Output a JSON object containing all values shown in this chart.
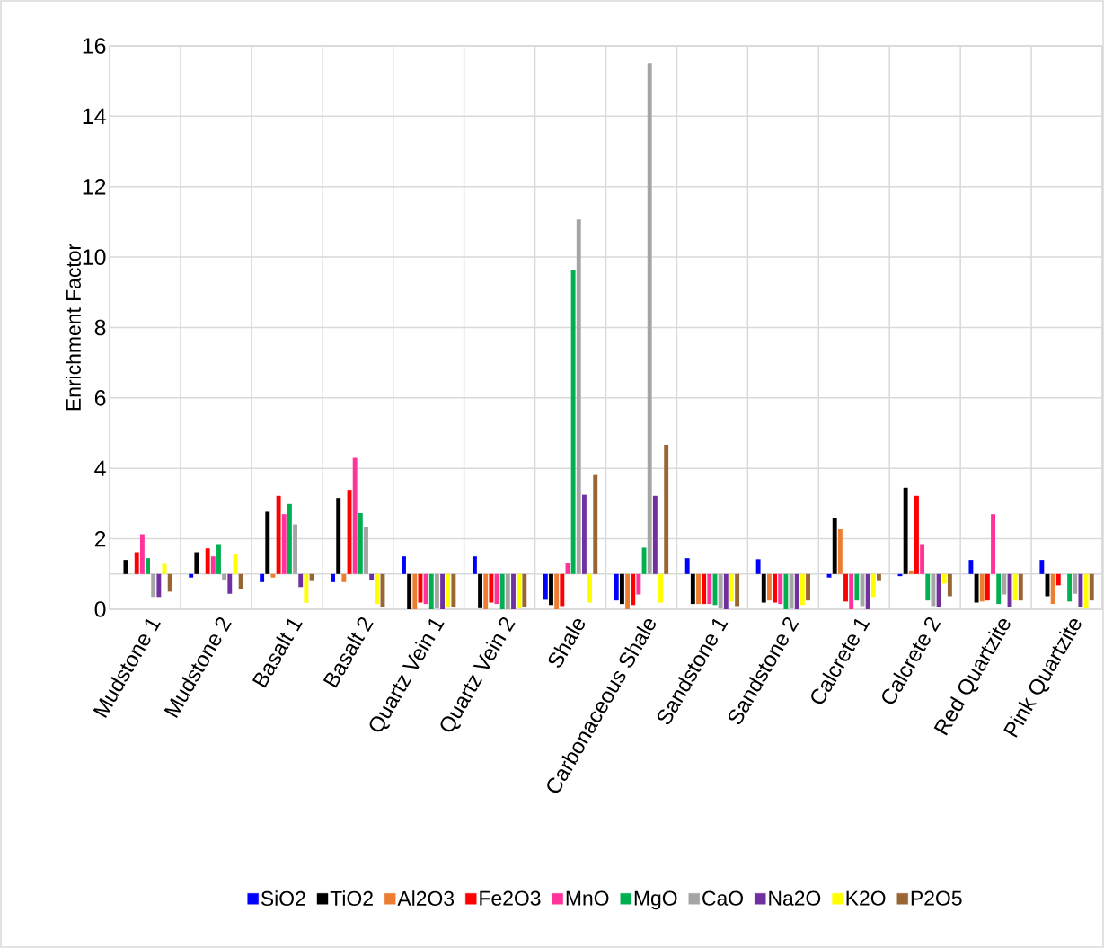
{
  "chart_data": {
    "type": "bar",
    "ylabel": "Enrichment Factor",
    "categories": [
      "Mudstone 1",
      "Mudstone 2",
      "Basalt 1",
      "Basalt 2",
      "Quartz Vein 1",
      "Quartz Vein 2",
      "Shale",
      "Carbonaceous Shale",
      "Sandstone 1",
      "Sandstone 2",
      "Calcrete 1",
      "Calcrete 2",
      "Red Quartzite",
      "Pink Quartzite"
    ],
    "series": [
      {
        "name": "SiO2",
        "color": "#0000ff",
        "base": [
          null,
          1,
          1,
          1,
          1,
          1,
          1,
          1,
          1,
          1,
          1,
          1,
          1,
          1
        ],
        "values": [
          null,
          -0.1,
          -0.23,
          -0.23,
          0.5,
          0.5,
          -0.73,
          -0.75,
          0.45,
          0.42,
          -0.1,
          -0.06,
          0.4,
          0.4
        ]
      },
      {
        "name": "TiO2",
        "color": "#000000",
        "base": [
          1,
          1,
          1,
          1,
          1,
          1,
          1,
          1,
          1,
          1,
          1,
          1,
          1,
          1
        ],
        "values": [
          0.4,
          0.62,
          1.77,
          2.16,
          -1.0,
          -0.97,
          -0.88,
          -0.85,
          -0.85,
          -0.81,
          1.59,
          2.45,
          -0.81,
          -0.63
        ]
      },
      {
        "name": "Al2O3",
        "color": "#ed7d31",
        "base": [
          null,
          null,
          1,
          1,
          1,
          1,
          1,
          1,
          1,
          1,
          1,
          1,
          1,
          1
        ],
        "values": [
          null,
          null,
          -0.1,
          -0.23,
          -1.0,
          -1.0,
          -1.0,
          -1.0,
          -0.85,
          -0.75,
          1.27,
          0.1,
          -0.78,
          -0.85
        ]
      },
      {
        "name": "Fe2O3",
        "color": "#ff0000",
        "base": [
          1,
          1,
          1,
          1,
          1,
          1,
          1,
          1,
          1,
          1,
          1,
          1,
          1,
          1
        ],
        "values": [
          0.62,
          0.73,
          2.22,
          2.39,
          -0.81,
          -0.81,
          -0.91,
          -0.88,
          -0.85,
          -0.81,
          -0.78,
          2.22,
          -0.75,
          -0.32
        ]
      },
      {
        "name": "MnO",
        "color": "#ff3399",
        "base": [
          1,
          1,
          1,
          1,
          1,
          1,
          1,
          1,
          1,
          1,
          1,
          1,
          1,
          null
        ],
        "values": [
          1.13,
          0.5,
          1.7,
          3.3,
          -0.85,
          -0.85,
          0.3,
          -0.58,
          -0.85,
          -0.85,
          -1.0,
          0.85,
          1.7,
          null
        ]
      },
      {
        "name": "MgO",
        "color": "#00b050",
        "base": [
          1,
          1,
          1,
          1,
          1,
          1,
          1,
          1,
          1,
          1,
          1,
          1,
          1,
          1
        ],
        "values": [
          0.45,
          0.85,
          1.99,
          1.73,
          -1.0,
          -1.0,
          8.64,
          0.75,
          -0.88,
          -1.0,
          -0.75,
          -0.75,
          -0.85,
          -0.78
        ]
      },
      {
        "name": "CaO",
        "color": "#a5a5a5",
        "base": [
          1,
          1,
          1,
          1,
          1,
          1,
          1,
          1,
          1,
          1,
          1,
          1,
          1,
          1
        ],
        "values": [
          -0.65,
          -0.17,
          1.41,
          1.34,
          -0.98,
          -1.0,
          10.07,
          14.51,
          -0.98,
          -0.98,
          -0.91,
          -0.91,
          -0.58,
          -0.56
        ]
      },
      {
        "name": "Na2O",
        "color": "#7030a0",
        "base": [
          1,
          1,
          1,
          1,
          1,
          1,
          1,
          1,
          1,
          1,
          1,
          1,
          1,
          1
        ],
        "values": [
          -0.65,
          -0.56,
          -0.37,
          -0.17,
          -1.0,
          -1.0,
          2.25,
          2.22,
          -1.0,
          -1.0,
          -1.0,
          -0.95,
          -0.95,
          -0.95
        ]
      },
      {
        "name": "K2O",
        "color": "#ffff00",
        "base": [
          1,
          1,
          1,
          1,
          1,
          1,
          1,
          1,
          1,
          1,
          1,
          1,
          1,
          1
        ],
        "values": [
          0.29,
          0.56,
          -0.82,
          -0.85,
          -0.95,
          -0.97,
          -0.81,
          -0.81,
          -0.78,
          -0.88,
          -0.65,
          -0.27,
          -0.75,
          -0.98
        ]
      },
      {
        "name": "P2O5",
        "color": "#996633",
        "base": [
          1,
          1,
          1,
          1,
          1,
          1,
          1,
          1,
          1,
          1,
          1,
          1,
          1,
          1
        ],
        "values": [
          -0.5,
          -0.43,
          -0.2,
          -0.95,
          -0.95,
          -0.95,
          2.81,
          3.67,
          -0.91,
          -0.75,
          -0.2,
          -0.63,
          -0.75,
          -0.75
        ]
      }
    ],
    "ref_lines": [
      {
        "axis": "y",
        "value": 1,
        "color": "#d9d9d9"
      }
    ],
    "ylim": [
      0,
      16
    ],
    "yticks": [
      0,
      2,
      4,
      6,
      8,
      10,
      12,
      14,
      16
    ],
    "grid": true,
    "legend": "bottom"
  }
}
